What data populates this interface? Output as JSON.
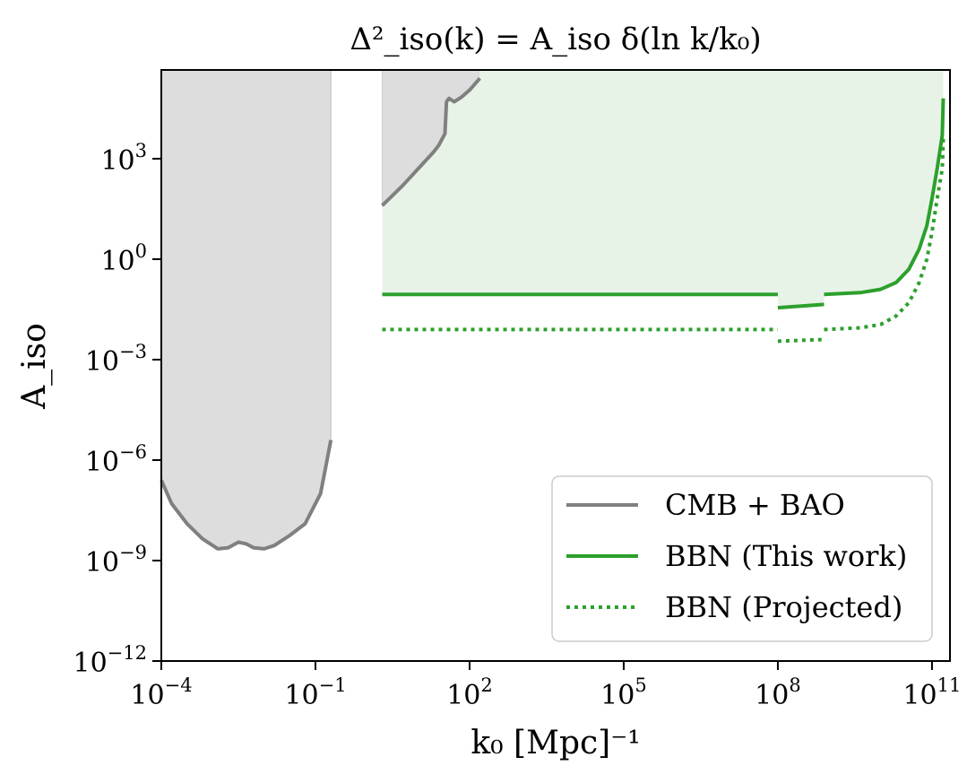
{
  "chart_data": {
    "type": "line",
    "title": "Δ²_iso(k) = A_iso δ(ln k/k₀)",
    "xlabel": "k₀ [Mpc]⁻¹",
    "ylabel": "A_iso",
    "x_scale": "log10",
    "y_scale": "log10",
    "xlim_log10": [
      -4,
      11.35
    ],
    "ylim_log10": [
      -12,
      5.65
    ],
    "x_ticks": [
      {
        "exp": -4,
        "label": "10",
        "sup": "−4"
      },
      {
        "exp": -1,
        "label": "10",
        "sup": "−1"
      },
      {
        "exp": 2,
        "label": "10",
        "sup": "2"
      },
      {
        "exp": 5,
        "label": "10",
        "sup": "5"
      },
      {
        "exp": 8,
        "label": "10",
        "sup": "8"
      },
      {
        "exp": 11,
        "label": "10",
        "sup": "11"
      }
    ],
    "y_ticks": [
      {
        "exp": 3,
        "label": "10",
        "sup": "3"
      },
      {
        "exp": 0,
        "label": "10",
        "sup": "0"
      },
      {
        "exp": -3,
        "label": "10",
        "sup": "−3"
      },
      {
        "exp": -6,
        "label": "10",
        "sup": "−6"
      },
      {
        "exp": -9,
        "label": "10",
        "sup": "−9"
      },
      {
        "exp": -12,
        "label": "10",
        "sup": "−12"
      }
    ],
    "legend_position": "lower-right",
    "series": [
      {
        "name": "CMB + BAO",
        "color": "#808080",
        "style": "solid",
        "fill": "#dddddd",
        "segments": [
          [
            [
              -4.0,
              -6.6
            ],
            [
              -3.8,
              -7.3
            ],
            [
              -3.5,
              -7.9
            ],
            [
              -3.2,
              -8.35
            ],
            [
              -2.9,
              -8.65
            ],
            [
              -2.7,
              -8.62
            ],
            [
              -2.5,
              -8.45
            ],
            [
              -2.35,
              -8.5
            ],
            [
              -2.2,
              -8.62
            ],
            [
              -2.0,
              -8.65
            ],
            [
              -1.8,
              -8.55
            ],
            [
              -1.5,
              -8.25
            ],
            [
              -1.2,
              -7.9
            ],
            [
              -0.9,
              -7.0
            ],
            [
              -0.8,
              -6.2
            ],
            [
              -0.7,
              -5.4
            ]
          ],
          [
            [
              0.3,
              1.6
            ],
            [
              0.7,
              2.2
            ],
            [
              1.0,
              2.7
            ],
            [
              1.3,
              3.2
            ],
            [
              1.4,
              3.4
            ],
            [
              1.52,
              3.75
            ],
            [
              1.55,
              4.7
            ],
            [
              1.6,
              4.8
            ],
            [
              1.7,
              4.7
            ],
            [
              1.85,
              4.85
            ],
            [
              2.0,
              5.05
            ],
            [
              2.2,
              5.4
            ]
          ]
        ]
      },
      {
        "name": "BBN (This work)",
        "color": "#2ca02c",
        "style": "solid",
        "fill": "#e8f3e8",
        "segments": [
          [
            [
              0.3,
              -1.05
            ],
            [
              4.0,
              -1.05
            ],
            [
              8.0,
              -1.05
            ]
          ],
          [
            [
              8.0,
              -1.45
            ],
            [
              8.9,
              -1.35
            ]
          ],
          [
            [
              8.9,
              -1.05
            ],
            [
              9.6,
              -1.0
            ],
            [
              10.0,
              -0.9
            ],
            [
              10.3,
              -0.7
            ],
            [
              10.55,
              -0.3
            ],
            [
              10.75,
              0.3
            ],
            [
              10.9,
              1.0
            ],
            [
              11.0,
              1.8
            ],
            [
              11.1,
              2.7
            ],
            [
              11.2,
              3.7
            ],
            [
              11.22,
              4.8
            ]
          ]
        ]
      },
      {
        "name": "BBN (Projected)",
        "color": "#2ca02c",
        "style": "dotted",
        "segments": [
          [
            [
              0.3,
              -2.1
            ],
            [
              4.0,
              -2.1
            ],
            [
              8.0,
              -2.1
            ]
          ],
          [
            [
              8.0,
              -2.45
            ],
            [
              8.85,
              -2.4
            ]
          ],
          [
            [
              8.9,
              -2.1
            ],
            [
              9.6,
              -2.05
            ],
            [
              10.0,
              -1.95
            ],
            [
              10.3,
              -1.7
            ],
            [
              10.55,
              -1.3
            ],
            [
              10.75,
              -0.7
            ],
            [
              10.9,
              0.0
            ],
            [
              11.0,
              0.8
            ],
            [
              11.1,
              1.8
            ],
            [
              11.2,
              2.7
            ],
            [
              11.22,
              3.6
            ]
          ]
        ]
      }
    ]
  }
}
